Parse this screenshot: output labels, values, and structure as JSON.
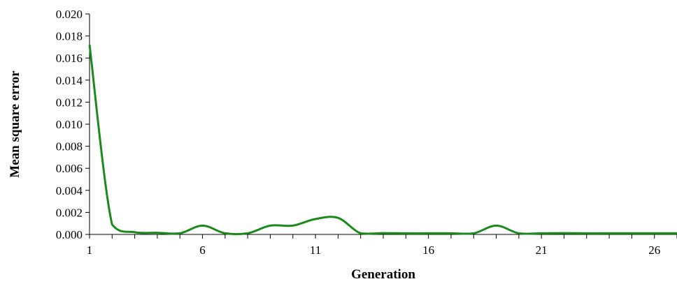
{
  "chart_data": {
    "type": "line",
    "title": "",
    "xlabel": "Generation",
    "ylabel": "Mean square error",
    "x_ticks": [
      1,
      6,
      11,
      16,
      21,
      26
    ],
    "y_ticks": [
      "0.000",
      "0.002",
      "0.004",
      "0.006",
      "0.008",
      "0.010",
      "0.012",
      "0.014",
      "0.016",
      "0.018",
      "0.020"
    ],
    "xlim": [
      1,
      27
    ],
    "ylim": [
      0,
      0.02
    ],
    "grid": false,
    "legend": "none",
    "series": [
      {
        "color": "#1a8a1a",
        "x": [
          1,
          2,
          3,
          4,
          5,
          6,
          7,
          8,
          9,
          10,
          11,
          12,
          13,
          14,
          15,
          16,
          17,
          18,
          19,
          20,
          21,
          22,
          23,
          24,
          25,
          26,
          27
        ],
        "y": [
          0.0172,
          0.0009,
          0.0002,
          0.00015,
          0.0001,
          0.0008,
          0.0001,
          0.0001,
          0.0008,
          0.0008,
          0.0014,
          0.0015,
          0.0001,
          0.00012,
          0.0001,
          0.0001,
          0.0001,
          0.0001,
          0.0008,
          0.0001,
          0.0001,
          0.00012,
          0.0001,
          0.0001,
          0.0001,
          0.0001,
          0.0001
        ]
      }
    ]
  }
}
